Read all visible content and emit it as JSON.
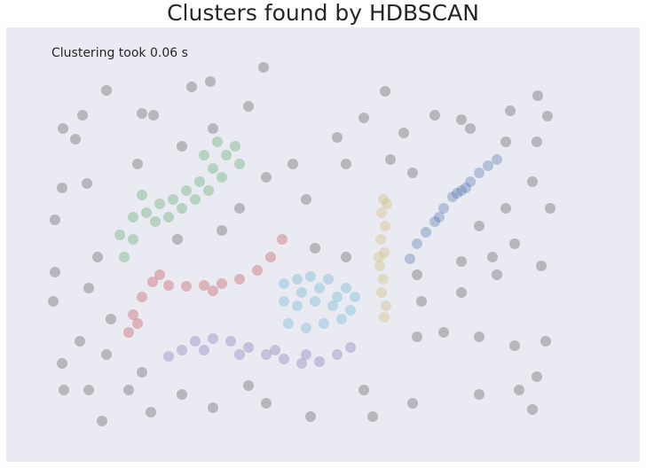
{
  "chart_data": {
    "type": "scatter",
    "title": "Clusters found by HDBSCAN",
    "annotation": "Clustering took 0.06 s",
    "xlim": [
      7,
      721
    ],
    "ylim": [
      0,
      490
    ],
    "background": "#eaeaf2",
    "alpha": 0.35,
    "series": [
      {
        "color": "#555555",
        "x": [
          297,
          237,
          120,
          216,
          434,
          606,
          93,
          160,
          173,
          71,
          85,
          410,
          575,
          617,
          380,
          455,
          530,
          570,
          605,
          70,
          98,
          155,
          300,
          345,
          390,
          600,
          570,
          62,
          62,
          110,
          100,
          60,
          125,
          90,
          70,
          72,
          100,
          115,
          170,
          240,
          300,
          350,
          410,
          420,
          465,
          540,
          585,
          600,
          605,
          580,
          615,
          540,
          500,
          475,
          520,
          560,
          610,
          580,
          555,
          520,
          470,
          540,
          620,
          465,
          490,
          520,
          240,
          205,
          330,
          280,
          270,
          200,
          250,
          355,
          390,
          120,
          160,
          470,
          440,
          280,
          205,
          145
        ],
        "y": [
          445,
          429,
          419,
          423,
          418,
          413,
          391,
          393,
          391,
          376,
          364,
          388,
          396,
          390,
          366,
          371,
          376,
          361,
          361,
          309,
          314,
          336,
          321,
          296,
          336,
          316,
          286,
          273,
          214,
          231,
          196,
          181,
          161,
          136,
          111,
          81,
          81,
          46,
          56,
          61,
          66,
          51,
          81,
          51,
          66,
          76,
          81,
          59,
          96,
          131,
          136,
          141,
          146,
          181,
          191,
          211,
          221,
          246,
          231,
          226,
          211,
          266,
          286,
          326,
          391,
          386,
          376,
          356,
          336,
          401,
          286,
          251,
          261,
          241,
          231,
          121,
          101,
          141,
          341,
          86,
          76,
          81
        ]
      },
      {
        "color": "#55a868",
        "x": [
          135,
          150,
          165,
          180,
          195,
          210,
          225,
          240,
          255,
          265,
          150,
          175,
          190,
          205,
          220,
          235,
          250,
          245,
          270,
          140,
          160,
          230
        ],
        "y": [
          256,
          276,
          281,
          291,
          296,
          306,
          316,
          331,
          346,
          356,
          251,
          271,
          276,
          286,
          296,
          306,
          321,
          361,
          336,
          231,
          301,
          346
        ]
      },
      {
        "color": "#c44e52",
        "x": [
          145,
          150,
          160,
          172,
          190,
          210,
          230,
          250,
          270,
          290,
          305,
          318,
          180,
          240,
          155
        ],
        "y": [
          146,
          166,
          186,
          203,
          199,
          198,
          199,
          201,
          206,
          216,
          231,
          251,
          211,
          193,
          156
        ]
      },
      {
        "color": "#64b5cd",
        "x": [
          320,
          335,
          350,
          370,
          390,
          400,
          320,
          335,
          355,
          375,
          395,
          325,
          345,
          365,
          385,
          340,
          360,
          380
        ],
        "y": [
          201,
          206,
          209,
          206,
          196,
          186,
          181,
          176,
          181,
          176,
          171,
          156,
          151,
          156,
          161,
          191,
          196,
          186
        ]
      },
      {
        "color": "#8172b2",
        "x": [
          190,
          205,
          220,
          240,
          260,
          280,
          300,
          320,
          340,
          360,
          380,
          395,
          230,
          270,
          310,
          345
        ],
        "y": [
          119,
          126,
          136,
          139,
          136,
          129,
          121,
          116,
          111,
          113,
          121,
          129,
          126,
          121,
          126,
          121
        ]
      },
      {
        "color": "#ccb974",
        "x": [
          432,
          430,
          434,
          429,
          433,
          428,
          432,
          430,
          435,
          433,
          436,
          427
        ],
        "y": [
          296,
          281,
          266,
          251,
          236,
          221,
          206,
          191,
          176,
          163,
          291,
          231
        ]
      },
      {
        "color": "#4c72b0",
        "x": [
          462,
          470,
          480,
          490,
          500,
          510,
          520,
          530,
          540,
          550,
          560,
          495,
          515,
          525
        ],
        "y": [
          229,
          246,
          259,
          271,
          286,
          299,
          306,
          316,
          326,
          334,
          341,
          276,
          303,
          309
        ]
      }
    ]
  }
}
